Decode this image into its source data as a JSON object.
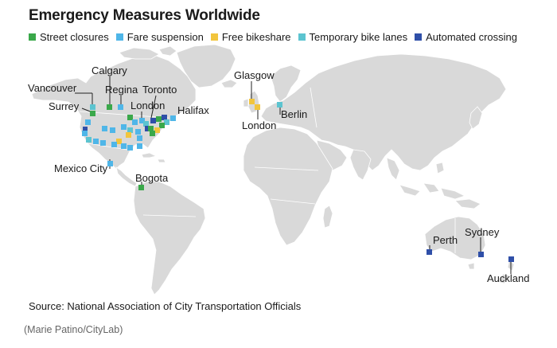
{
  "title": "Emergency Measures Worldwide",
  "legend": [
    {
      "label": "Street closures",
      "color": "#3aa84a"
    },
    {
      "label": "Fare suspension",
      "color": "#4fb6e8"
    },
    {
      "label": "Free bikeshare",
      "color": "#f2c53d"
    },
    {
      "label": "Temporary bike lanes",
      "color": "#5cc4d0"
    },
    {
      "label": "Automated crossing",
      "color": "#2f4fa8"
    }
  ],
  "cities": {
    "calgary": "Calgary",
    "vancouver": "Vancouver",
    "regina": "Regina",
    "toronto": "Toronto",
    "surrey": "Surrey",
    "london_ca": "London",
    "halifax": "Halifax",
    "mexico_city": "Mexico City",
    "bogota": "Bogota",
    "glasgow": "Glasgow",
    "london_uk": "London",
    "berlin": "Berlin",
    "perth": "Perth",
    "sydney": "Sydney",
    "auckland": "Auckland"
  },
  "colors": {
    "land": "#d9d9d9",
    "border": "#ffffff",
    "leader": "#222222"
  },
  "source": "Source: National Association of City Transportation Officials",
  "credit": "(Marie Patino/CityLab)"
}
